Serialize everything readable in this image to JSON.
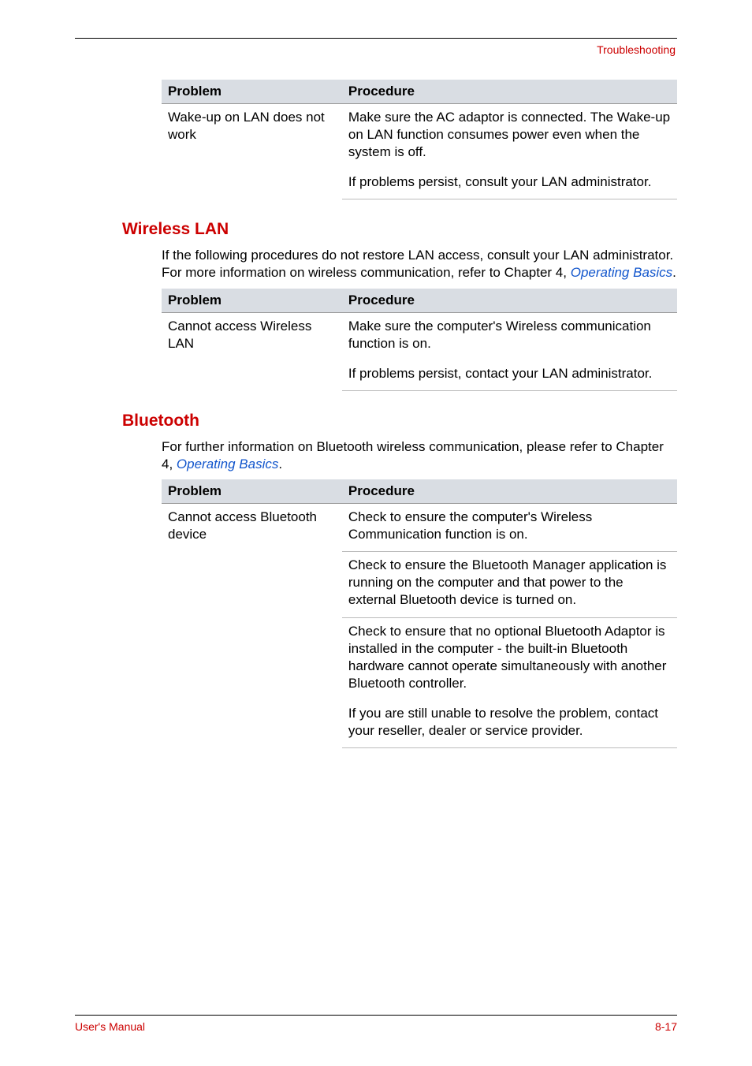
{
  "header": {
    "section_label": "Troubleshooting"
  },
  "table1": {
    "col1_header": "Problem",
    "col2_header": "Procedure",
    "row1": {
      "problem": "Wake-up on LAN does not work",
      "proc1": "Make sure the AC adaptor is connected. The Wake-up on LAN function consumes power even when the system is off.",
      "proc2": "If problems persist, consult your LAN administrator."
    }
  },
  "wireless": {
    "title": "Wireless LAN",
    "intro_part1": "If the following procedures do not restore LAN access, consult your LAN administrator. For more information on wireless communication, refer to Chapter 4, ",
    "intro_link": "Operating Basics",
    "intro_part2": ".",
    "table": {
      "col1_header": "Problem",
      "col2_header": "Procedure",
      "row1": {
        "problem": "Cannot access Wireless LAN",
        "proc1": "Make sure the computer's Wireless communication function is on.",
        "proc2": "If problems persist, contact your LAN administrator."
      }
    }
  },
  "bluetooth": {
    "title": "Bluetooth",
    "intro_part1": "For further information on Bluetooth wireless communication, please refer to Chapter 4, ",
    "intro_link": "Operating Basics",
    "intro_part2": ".",
    "table": {
      "col1_header": "Problem",
      "col2_header": "Procedure",
      "row1": {
        "problem": "Cannot access Bluetooth device",
        "proc1": "Check to ensure the computer's Wireless Communication function is on.",
        "proc2": "Check to ensure the Bluetooth Manager application is running on the computer and that power to the external Bluetooth device is turned on.",
        "proc3": "Check to ensure that no optional Bluetooth Adaptor is installed in the computer - the built-in Bluetooth hardware cannot operate simultaneously with another Bluetooth controller.",
        "proc4": "If you are still unable to resolve the problem, contact your reseller, dealer or service provider."
      }
    }
  },
  "footer": {
    "left": "User's Manual",
    "right": "8-17"
  }
}
